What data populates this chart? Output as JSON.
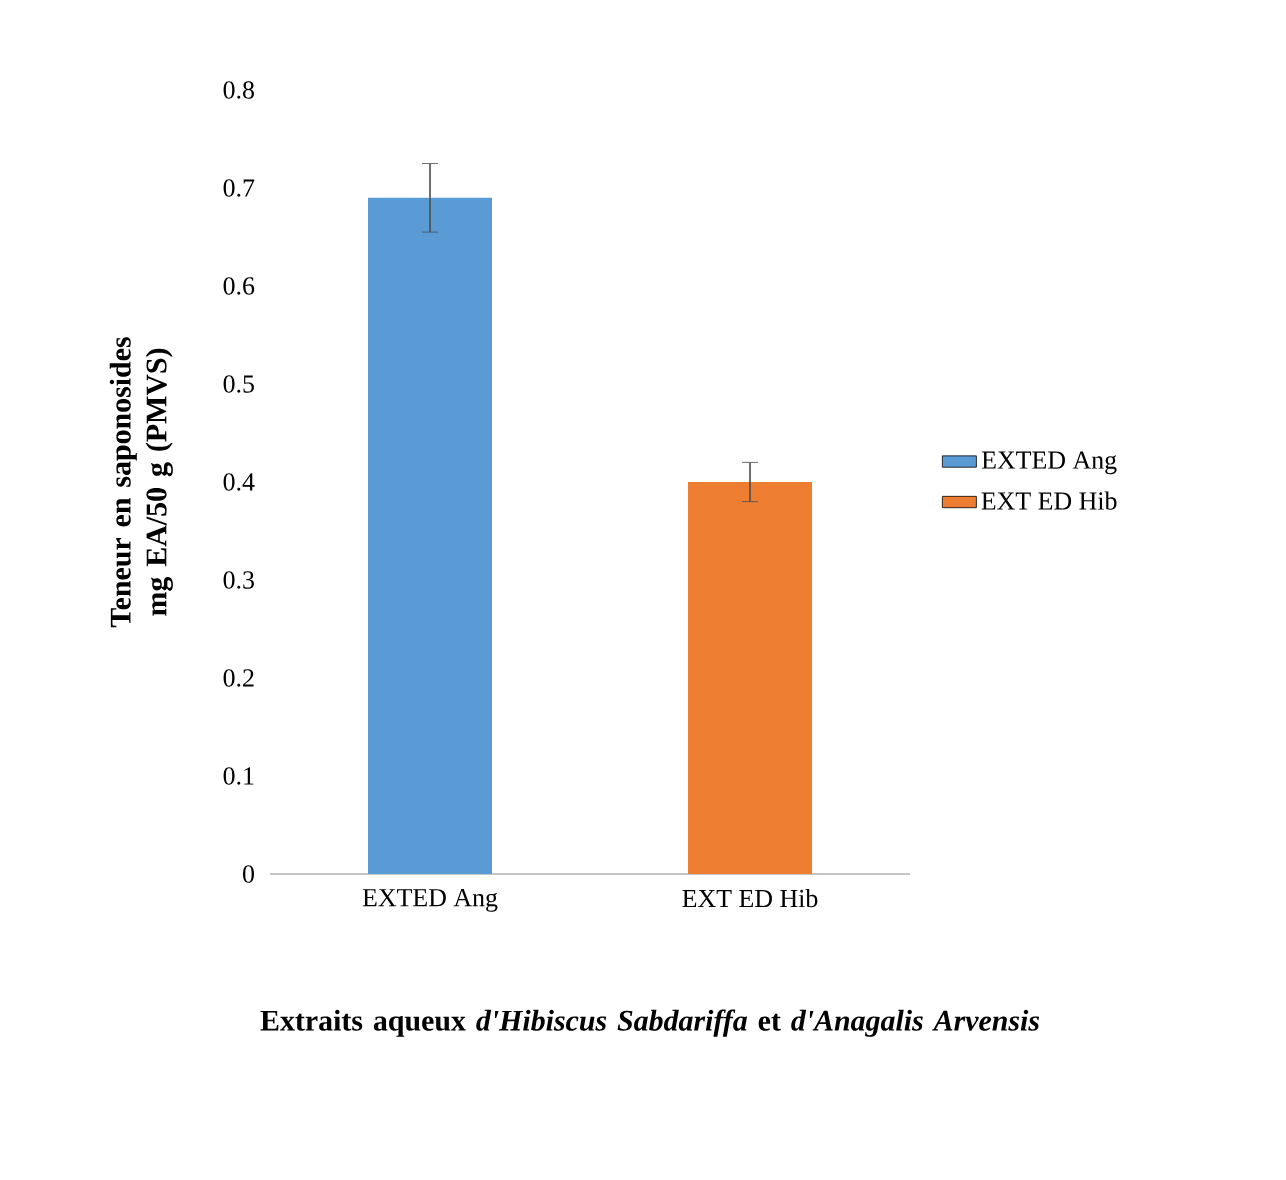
{
  "chart_data": {
    "type": "bar",
    "xlabel": "Extraits aqueux *d'Hibiscus Sabdariffa* et *d'Anagalis Arvensis*",
    "ylabel": "Teneur en saponosides mg EA/50 g (PMVS)",
    "categories": [
      "EXTED Ang",
      "EXT ED Hib"
    ],
    "series": [
      {
        "name": "EXTED Ang",
        "color": "#5b9bd5",
        "values": [
          0.69,
          null
        ],
        "errors": [
          0.035,
          null
        ]
      },
      {
        "name": "EXT ED Hib",
        "color": "#ed7d31",
        "values": [
          null,
          0.4
        ],
        "errors": [
          null,
          0.02
        ]
      }
    ],
    "ylim": [
      0,
      0.8
    ],
    "yticks": [
      0,
      0.1,
      0.2,
      0.3,
      0.4,
      0.5,
      0.6,
      0.7,
      0.8
    ],
    "legend": "right",
    "grid": false
  }
}
